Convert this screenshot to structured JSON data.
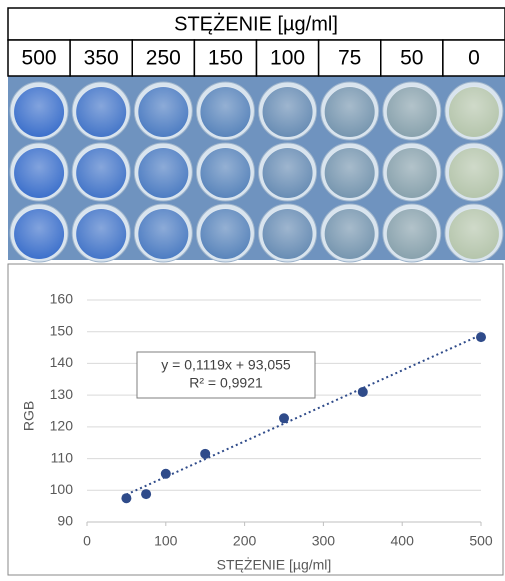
{
  "table": {
    "title": "STĘŻENIE [µg/ml]",
    "columns": [
      "500",
      "350",
      "250",
      "150",
      "100",
      "75",
      "50",
      "0"
    ]
  },
  "chart_data": {
    "type": "scatter",
    "x_label": "STĘŻENIE [µg/ml]",
    "y_label": "RGB",
    "x": [
      50,
      75,
      100,
      150,
      250,
      350,
      500
    ],
    "values": [
      97.5,
      98.8,
      105.2,
      111.5,
      122.7,
      131,
      148.3
    ],
    "color": "#2f4b8a",
    "xlim": [
      0,
      500
    ],
    "xticks": [
      0,
      100,
      200,
      300,
      400,
      500
    ],
    "ylim": [
      90,
      160
    ],
    "yticks": [
      90,
      100,
      110,
      120,
      130,
      140,
      150,
      160
    ],
    "grid": true,
    "trendline": {
      "label": "y = 0,1119x + 93,055",
      "r2_label": "R² = 0,9921",
      "slope": 0.1119,
      "intercept": 93.055
    }
  }
}
